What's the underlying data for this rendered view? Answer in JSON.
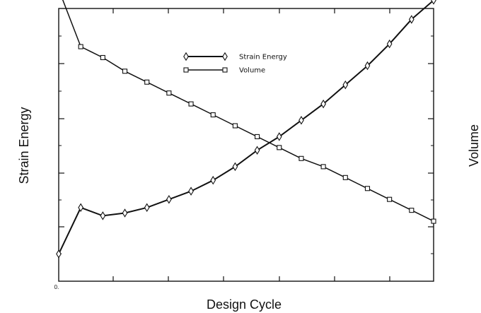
{
  "chart_data": {
    "type": "line",
    "title": "",
    "xlabel": "Design Cycle",
    "ylabel_left": "Strain Energy",
    "ylabel_right": "Volume",
    "x_tick_labels": [
      "0."
    ],
    "legend_position": "top-center",
    "grid": false,
    "xlim": [
      0,
      17
    ],
    "ylim": [
      0,
      1
    ],
    "x": [
      0,
      1,
      2,
      3,
      4,
      5,
      6,
      7,
      8,
      9,
      10,
      11,
      12,
      13,
      14,
      15,
      16,
      17
    ],
    "series": [
      {
        "name": "Strain Energy",
        "marker": "diamond",
        "color": "#111111",
        "values": [
          0.1,
          0.27,
          0.24,
          0.25,
          0.27,
          0.3,
          0.33,
          0.37,
          0.42,
          0.48,
          0.53,
          0.59,
          0.65,
          0.72,
          0.79,
          0.87,
          0.96,
          1.03
        ]
      },
      {
        "name": "Volume",
        "marker": "square",
        "color": "#111111",
        "values": [
          1.07,
          0.86,
          0.82,
          0.77,
          0.73,
          0.69,
          0.65,
          0.61,
          0.57,
          0.53,
          0.49,
          0.45,
          0.42,
          0.38,
          0.34,
          0.3,
          0.26,
          0.22
        ]
      }
    ]
  }
}
